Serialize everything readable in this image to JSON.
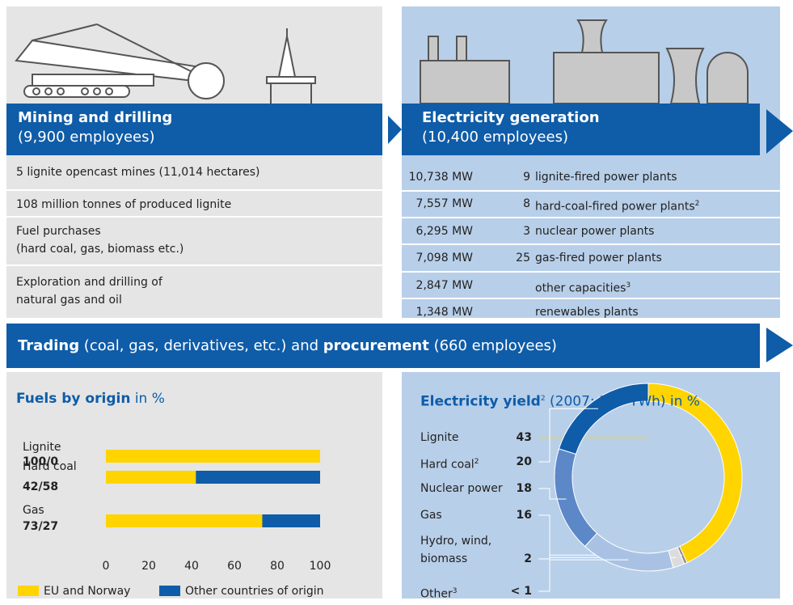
{
  "mining": {
    "title": "Mining and drilling",
    "employees": "(9,900 employees)",
    "items": [
      [
        "5 lignite opencast mines (11,014 hectares)"
      ],
      [
        "108 million tonnes of produced lignite"
      ],
      [
        "Fuel purchases",
        "(hard coal, gas, biomass etc.)"
      ],
      [
        "Exploration and drilling of",
        "natural gas and oil"
      ]
    ]
  },
  "generation": {
    "title": "Electricity generation",
    "employees": "(10,400 employees)",
    "plants": [
      {
        "capacity": "10,738 MW",
        "count": "9",
        "type": "lignite-fired power plants"
      },
      {
        "capacity": "7,557 MW",
        "count": "8",
        "type": "hard-coal-fired power plants",
        "note": "2"
      },
      {
        "capacity": "6,295 MW",
        "count": "3",
        "type": "nuclear power plants"
      },
      {
        "capacity": "7,098 MW",
        "count": "25",
        "type": "gas-fired power plants"
      },
      {
        "capacity": "2,847 MW",
        "type": "other capacities",
        "note": "3"
      },
      {
        "capacity": "1,348 MW",
        "type": "renewables plants"
      }
    ]
  },
  "trading": [
    {
      "text": "Trading",
      "bold": true
    },
    {
      "text": " (coal, gas, derivatives, etc.) and ",
      "bold": false
    },
    {
      "text": "procurement",
      "bold": true
    },
    {
      "text": " (660 employees)",
      "bold": false
    }
  ],
  "chart_data": [
    {
      "type": "bar",
      "orientation": "horizontal",
      "stacked": true,
      "title": "Fuels by origin",
      "unit": "in %",
      "categories": [
        "Lignite",
        "Hard coal",
        "Gas"
      ],
      "value_labels": [
        "100/0",
        "42/58",
        "73/27"
      ],
      "series": [
        {
          "name": "EU and Norway",
          "color": "#ffd400",
          "values": [
            100,
            42,
            73
          ]
        },
        {
          "name": "Other countries of origin",
          "color": "#0f5ca8",
          "values": [
            0,
            58,
            27
          ]
        }
      ],
      "xlim": [
        0,
        100
      ],
      "xticks": [
        0,
        20,
        40,
        60,
        80,
        100
      ]
    },
    {
      "type": "donut",
      "title": "Electricity yield",
      "title_note": "2",
      "subtitle": "(2007: 177 TWh) in %",
      "categories": [
        "Lignite",
        "Other",
        "Hydro, wind, biomass",
        "Gas",
        "Nuclear power",
        "Hard coal"
      ],
      "category_notes": [
        null,
        "3",
        null,
        null,
        null,
        "2"
      ],
      "values": [
        43,
        0.5,
        2,
        16,
        18,
        20
      ],
      "value_labels": [
        "43",
        "< 1",
        "2",
        "16",
        "18",
        "20"
      ],
      "colors": [
        "#ffd400",
        "#8e8e8e",
        "#dcdcdc",
        "#a9c2e4",
        "#5d88c8",
        "#0f5ca8"
      ]
    }
  ]
}
